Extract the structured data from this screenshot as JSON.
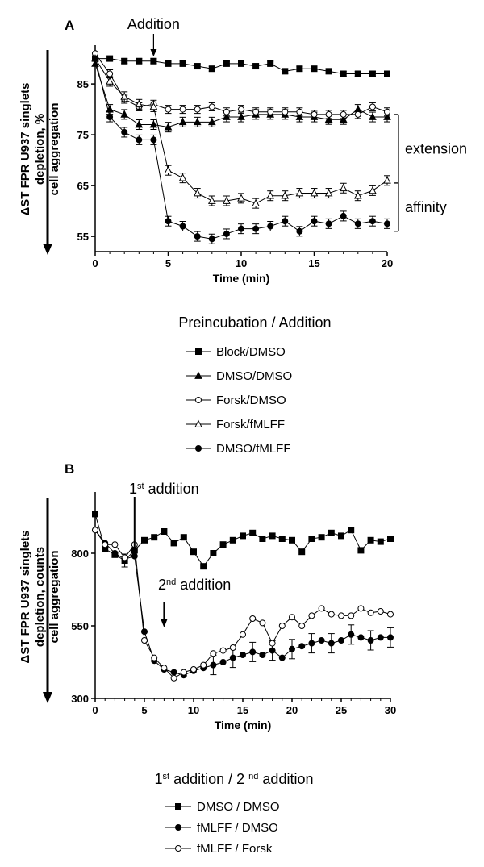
{
  "chart_data": [
    {
      "type": "line",
      "panel": "A",
      "annotation_arrow": "Addition",
      "xlabel": "Time (min)",
      "ylabel_lines": [
        "ΔST FPR U937 singlets",
        "depletion, %",
        "cell aggregation"
      ],
      "xticks": [
        0,
        5,
        10,
        15,
        20
      ],
      "yticks": [
        55,
        65,
        75,
        85
      ],
      "xlim": [
        0,
        20
      ],
      "ylim": [
        52,
        92
      ],
      "brackets": [
        {
          "label": "extension",
          "from": 79,
          "to": 65.5
        },
        {
          "label": "affinity",
          "from": 65.5,
          "to": 56
        }
      ],
      "legend_title": "Preincubation / Addition",
      "x": [
        0,
        1,
        2,
        3,
        4,
        5,
        6,
        7,
        8,
        9,
        10,
        11,
        12,
        13,
        14,
        15,
        16,
        17,
        18,
        19,
        20
      ],
      "series": [
        {
          "name": "Block/DMSO",
          "marker": "square-filled",
          "values": [
            90,
            90,
            89.5,
            89.5,
            89.5,
            89,
            89,
            88.5,
            88,
            89,
            89,
            88.5,
            89,
            87.5,
            88,
            88,
            87.5,
            87,
            87,
            87,
            87
          ]
        },
        {
          "name": "DMSO/DMSO",
          "marker": "triangle-filled",
          "values": [
            89,
            80,
            79,
            77,
            77,
            76.5,
            77.5,
            77.5,
            77.5,
            78.5,
            78.5,
            79,
            79,
            79,
            78.5,
            78.5,
            78,
            78,
            80,
            78.5,
            78.5
          ]
        },
        {
          "name": "Forsk/DMSO",
          "marker": "circle-open",
          "values": [
            91,
            87,
            82,
            80.5,
            81,
            80,
            80,
            80,
            80.5,
            79.5,
            80,
            79.5,
            79.5,
            79.5,
            79.5,
            79,
            79,
            79,
            79,
            80.5,
            79.5
          ]
        },
        {
          "name": "Forsk/fMLFF",
          "marker": "triangle-open",
          "values": [
            90,
            85.5,
            82.5,
            81,
            80.5,
            68,
            66.5,
            63.5,
            62,
            62,
            62.5,
            61.5,
            63,
            63,
            63.5,
            63.5,
            63.5,
            64.5,
            63,
            64,
            66
          ]
        },
        {
          "name": "DMSO/fMLFF",
          "marker": "circle-filled",
          "values": [
            90,
            78.5,
            75.5,
            74,
            74,
            58,
            57,
            55,
            54.5,
            55.5,
            56.5,
            56.5,
            57,
            58,
            56,
            58,
            57.5,
            59,
            57.5,
            58,
            57.5
          ]
        }
      ]
    },
    {
      "type": "line",
      "panel": "B",
      "annotation_first": [
        "1",
        "st",
        " addition"
      ],
      "annotation_second": [
        "2",
        "nd",
        " addition"
      ],
      "xlabel": "Time (min)",
      "ylabel_lines": [
        "ΔST FPR U937 singlets",
        "depletion, counts",
        "cell aggregation"
      ],
      "xticks": [
        0,
        5,
        10,
        15,
        20,
        25,
        30
      ],
      "yticks": [
        300,
        550,
        800
      ],
      "xlim": [
        0,
        30
      ],
      "ylim": [
        300,
        1000
      ],
      "legend_title_parts": [
        "1",
        "st",
        " addition / 2 ",
        "nd",
        " addition"
      ],
      "x": [
        0,
        1,
        2,
        3,
        4,
        5,
        6,
        7,
        8,
        9,
        10,
        11,
        12,
        13,
        14,
        15,
        16,
        17,
        18,
        19,
        20,
        21,
        22,
        23,
        24,
        25,
        26,
        27,
        28,
        29,
        30
      ],
      "series": [
        {
          "name": "DMSO / DMSO",
          "marker": "square-filled",
          "values": [
            935,
            815,
            795,
            775,
            810,
            845,
            855,
            875,
            835,
            855,
            805,
            755,
            800,
            830,
            845,
            860,
            870,
            850,
            860,
            850,
            845,
            805,
            850,
            855,
            870,
            860,
            880,
            810,
            845,
            840,
            850
          ]
        },
        {
          "name": "fMLFF / DMSO",
          "marker": "circle-filled",
          "values": [
            880,
            835,
            800,
            780,
            790,
            530,
            430,
            400,
            390,
            380,
            395,
            405,
            415,
            425,
            440,
            450,
            460,
            450,
            465,
            440,
            470,
            480,
            490,
            500,
            490,
            500,
            520,
            510,
            500,
            510,
            510
          ]
        },
        {
          "name": "fMLFF / Forsk",
          "marker": "circle-open",
          "values": [
            880,
            830,
            830,
            785,
            830,
            500,
            440,
            405,
            370,
            390,
            400,
            415,
            455,
            465,
            475,
            520,
            575,
            560,
            490,
            550,
            580,
            550,
            585,
            610,
            590,
            585,
            585,
            610,
            595,
            600,
            590
          ]
        }
      ]
    }
  ]
}
